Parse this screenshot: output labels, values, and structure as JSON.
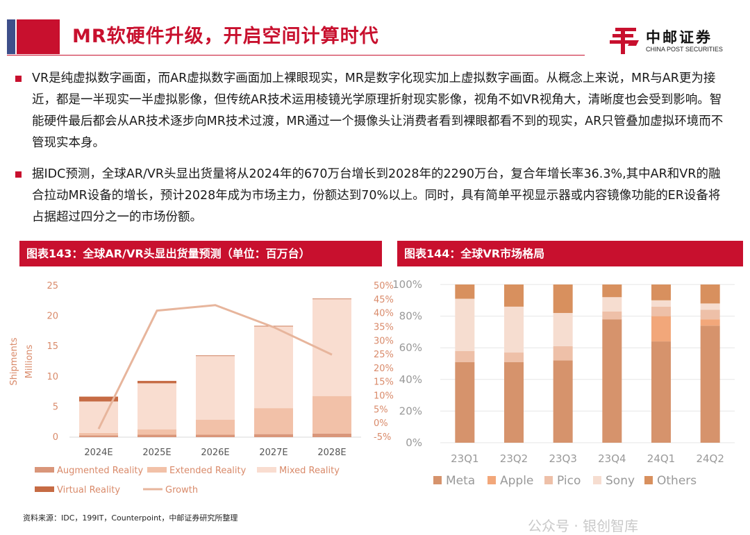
{
  "page": {
    "title": "MR软硬件升级，开启空间计算时代",
    "logo_cn": "中邮证券",
    "logo_en": "CHINA POST SECURITIES",
    "bullets": [
      "VR是纯虚拟数字画面，而AR虚拟数字画面加上裸眼现实，MR是数字化现实加上虚拟数字画面。从概念上来说，MR与AR更为接近，都是一半现实一半虚拟影像，但传统AR技术运用棱镜光学原理折射现实影像，视角不如VR视角大，清晰度也会受到影响。智能硬件最后都会从AR技术逐步向MR技术过渡，MR通过一个摄像头让消费者看到裸眼都看不到的现实，AR只管叠加虚拟环境而不管现实本身。",
      "据IDC预测，全球AR/VR头显出货量将从2024年的670万台增长到2028年的2290万台，复合年增长率36.3%,其中AR和VR的融合拉动MR设备的增长，预计2028年成为市场主力，份额达到70%以上。同时，具有简单平视显示器或内容镜像功能的ER设备将占据超过四分之一的市场份额。"
    ],
    "source": "资料来源：IDC，199IT，Counterpoint，中邮证券研究所整理",
    "watermark": "公众号 · 银创智库"
  },
  "colors": {
    "brand_red": "#c8102e",
    "title_accent": "#3e4f8a"
  },
  "chart_data": [
    {
      "type": "bar",
      "panel_title": "图表143：全球AR/VR头显出货量预测（单位：百万台）",
      "stacked": true,
      "categories": [
        "2024E",
        "2025E",
        "2026E",
        "2027E",
        "2028E"
      ],
      "ylabel": "Shipments Millions",
      "ylim": [
        0,
        25
      ],
      "yticks": [
        0,
        5,
        10,
        15,
        20,
        25
      ],
      "y2lim": [
        -5,
        50
      ],
      "y2ticks": [
        "-5%",
        "0%",
        "5%",
        "10%",
        "15%",
        "20%",
        "25%",
        "30%",
        "35%",
        "40%",
        "45%",
        "50%"
      ],
      "series": [
        {
          "name": "Augmented Reality",
          "values": [
            0.3,
            0.4,
            0.4,
            0.5,
            0.6
          ],
          "color": "#d9967a"
        },
        {
          "name": "Extended Reality",
          "values": [
            0.4,
            0.9,
            2.5,
            4.3,
            6.2
          ],
          "color": "#f2c1a8"
        },
        {
          "name": "Mixed Reality",
          "values": [
            5.2,
            7.6,
            10.5,
            13.5,
            16.0
          ],
          "color": "#f9ddd0"
        },
        {
          "name": "Virtual Reality",
          "values": [
            0.8,
            0.4,
            0.1,
            0.1,
            0.1
          ],
          "color": "#c66b44"
        }
      ],
      "line": {
        "name": "Growth",
        "axis": "right",
        "values": [
          -2,
          41,
          43,
          35,
          25
        ],
        "unit": "%",
        "color": "#e7b59c"
      },
      "grid": false,
      "legend": "bottom"
    },
    {
      "type": "bar",
      "panel_title": "图表144：全球VR市场格局",
      "stacked": true,
      "percent": true,
      "categories": [
        "23Q1",
        "23Q2",
        "23Q3",
        "23Q4",
        "24Q1",
        "24Q2"
      ],
      "ylim": [
        0,
        100
      ],
      "yticks": [
        "0%",
        "20%",
        "40%",
        "60%",
        "80%",
        "100%"
      ],
      "series": [
        {
          "name": "Meta",
          "values": [
            51,
            51,
            52,
            78,
            64,
            74
          ],
          "color": "#d6936c"
        },
        {
          "name": "Apple",
          "values": [
            0,
            0,
            0,
            0,
            16,
            4
          ],
          "color": "#f2a77a"
        },
        {
          "name": "Pico",
          "values": [
            7,
            6,
            9,
            5,
            6,
            6
          ],
          "color": "#eec0a8"
        },
        {
          "name": "Sony",
          "values": [
            33,
            29,
            21,
            9,
            4,
            4
          ],
          "color": "#f6ddd0"
        },
        {
          "name": "Others",
          "values": [
            9,
            14,
            18,
            8,
            10,
            12
          ],
          "color": "#d8905e"
        }
      ],
      "grid": true,
      "legend": "bottom"
    }
  ]
}
